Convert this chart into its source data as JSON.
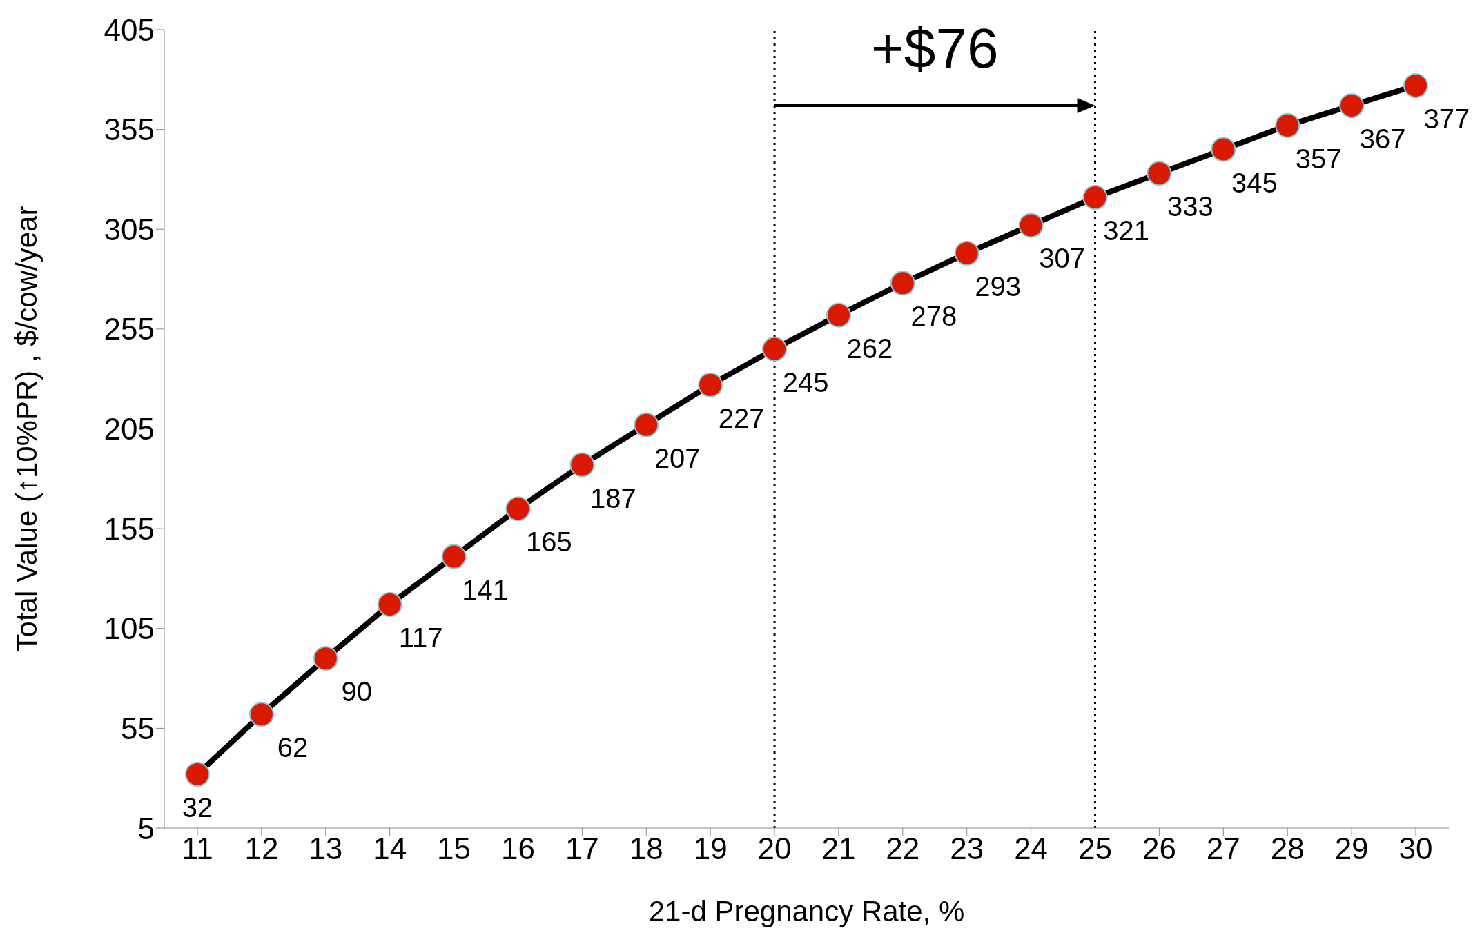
{
  "chart_data": {
    "type": "line",
    "xlabel": "21-d Pregnancy Rate, %",
    "ylabel": "Total Value (↑10%PR) , $/cow/year",
    "categories": [
      "11",
      "12",
      "13",
      "14",
      "15",
      "16",
      "17",
      "18",
      "19",
      "20",
      "21",
      "22",
      "23",
      "24",
      "25",
      "26",
      "27",
      "28",
      "29",
      "30"
    ],
    "series": [
      {
        "color": "#000000",
        "colors": [
          "#d91a00",
          "#d91a00",
          "#d91a00",
          "#d91a00",
          "#d91a00",
          "#d91a00",
          "#d91a00",
          "#d91a00",
          "#d91a00",
          "#d91a00",
          "#d91a00",
          "#d91a00",
          "#d91a00",
          "#d91a00",
          "#d91a00",
          "#d91a00",
          "#d91a00",
          "#d91a00",
          "#d91a00",
          "#d91a00"
        ],
        "values": [
          32,
          62,
          90,
          117,
          141,
          165,
          187,
          207,
          227,
          245,
          262,
          278,
          293,
          307,
          321,
          333,
          345,
          357,
          367,
          377
        ]
      }
    ],
    "marker": "circle",
    "data_labels": true,
    "ylim": [
      5,
      405
    ],
    "yticks": [
      5,
      55,
      105,
      155,
      205,
      255,
      305,
      355,
      405
    ],
    "grid": false,
    "ref_lines": [
      {
        "axis": "x",
        "value": "20",
        "line_style": "dotted",
        "color": "#000000"
      },
      {
        "axis": "x",
        "value": "25",
        "line_style": "dotted",
        "color": "#000000"
      }
    ],
    "annotations": [
      "+$76"
    ]
  }
}
